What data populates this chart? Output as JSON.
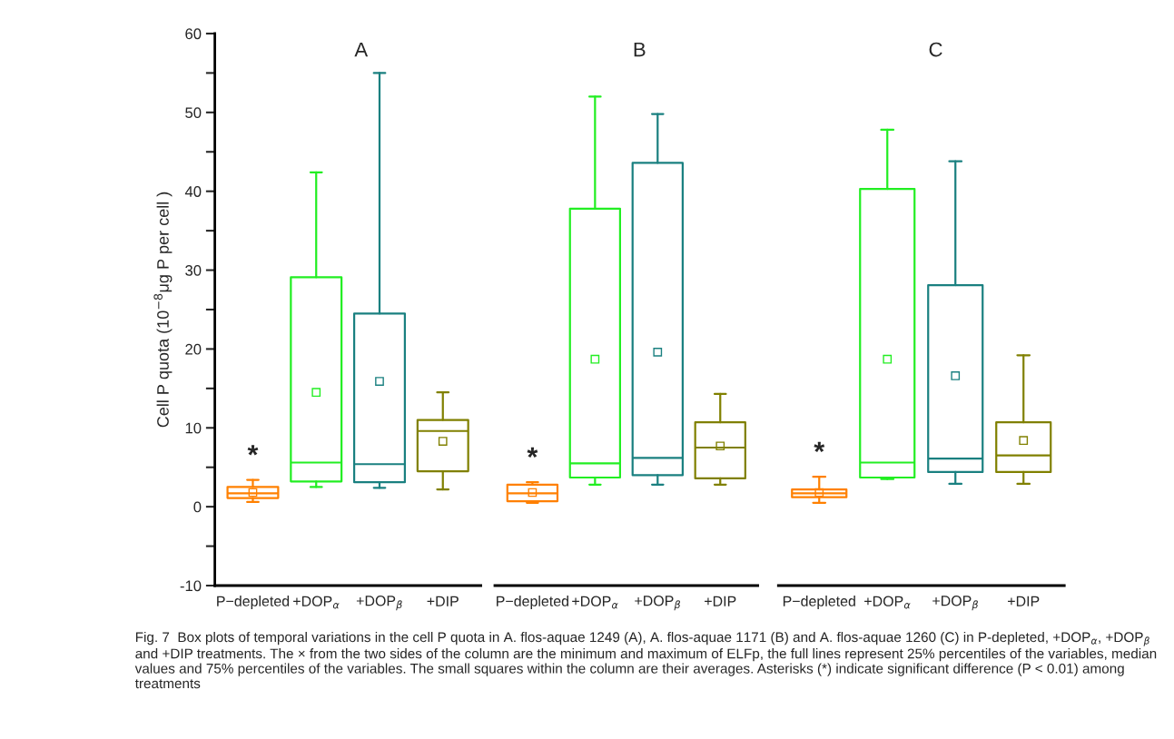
{
  "chart_data": [
    {
      "type": "box",
      "title": "A",
      "ylabel": "Cell P quota (10$^{−8}$μg P per cell )",
      "categories": [
        "P−depleted",
        "+DOP$_{α}$",
        "+DOP$_{β}$",
        "+DIP"
      ],
      "colors": [
        "#ff8000",
        "#22ee22",
        "#1a8080",
        "#808000"
      ],
      "boxes": [
        {
          "low": 0.6,
          "q1": 1.1,
          "median": 1.7,
          "q3": 2.5,
          "high": 3.4,
          "mean": 1.8
        },
        {
          "low": 2.5,
          "q1": 3.2,
          "median": 5.6,
          "q3": 29.1,
          "high": 42.4,
          "mean": 14.5
        },
        {
          "low": 2.4,
          "q1": 3.1,
          "median": 5.4,
          "q3": 24.5,
          "high": 55,
          "mean": 15.9
        },
        {
          "low": 2.2,
          "q1": 4.5,
          "median": 9.6,
          "q3": 11.0,
          "high": 14.5,
          "mean": 8.3
        }
      ],
      "ylim": [
        -10,
        60
      ],
      "yticks": [
        -10,
        {
          "value": -5,
          "label": null
        },
        0,
        {
          "value": 5,
          "label": null
        },
        10,
        {
          "value": 15,
          "label": null
        },
        20,
        {
          "value": 25,
          "label": null
        },
        30,
        {
          "value": 35,
          "label": null
        },
        40,
        {
          "value": 45,
          "label": null
        },
        50,
        {
          "value": 55,
          "label": null
        },
        60
      ],
      "annotations": [
        "*",
        "Fig. 7  Box plots of temporal variations in the cell P quota in A. flos-aquae 1249 (A), A. flos-aquae 1171 (B) and A. flos-aquae 1260 (C) in P-depleted, +DOP$_{α}$, +DOP$_{β}$ and +DIP treatments. The × from the two sides of the column are the minimum and maximum of ELFp, the full lines represent 25% percentiles of the variables, median values and 75% percentiles of the variables. The small squares within the column are their averages. Asterisks (*) indicate significant difference (P < 0.01) among treatments"
      ]
    },
    {
      "type": "box",
      "title": "B",
      "categories": [
        "P−depleted",
        "+DOP$_{α}$",
        "+DOP$_{β}$",
        "+DIP"
      ],
      "colors": [
        "#ff8000",
        "#22ee22",
        "#1a8080",
        "#808000"
      ],
      "boxes": [
        {
          "low": 0.5,
          "q1": 0.7,
          "median": 1.7,
          "q3": 2.8,
          "high": 3.1,
          "mean": 1.8
        },
        {
          "low": 2.8,
          "q1": 3.7,
          "median": 5.5,
          "q3": 37.8,
          "high": 52,
          "mean": 18.7
        },
        {
          "low": 2.8,
          "q1": 4.0,
          "median": 6.2,
          "q3": 43.6,
          "high": 49.8,
          "mean": 19.6
        },
        {
          "low": 2.8,
          "q1": 3.6,
          "median": 7.5,
          "q3": 10.7,
          "high": 14.3,
          "mean": 7.7
        }
      ],
      "ylim": [
        -10,
        60
      ],
      "tick_labels": "x",
      "annotations": [
        "*"
      ]
    },
    {
      "type": "box",
      "title": "C",
      "categories": [
        "P−depleted",
        "+DOP$_{α}$",
        "+DOP$_{β}$",
        "+DIP"
      ],
      "colors": [
        "#ff8000",
        "#22ee22",
        "#1a8080",
        "#808000"
      ],
      "boxes": [
        {
          "low": 0.5,
          "q1": 1.2,
          "median": 1.7,
          "q3": 2.2,
          "high": 3.8,
          "mean": 1.8
        },
        {
          "low": 3.5,
          "q1": 3.7,
          "median": 5.6,
          "q3": 40.3,
          "high": 47.8,
          "mean": 18.7
        },
        {
          "low": 2.9,
          "q1": 4.4,
          "median": 6.1,
          "q3": 28.1,
          "high": 43.8,
          "mean": 16.6
        },
        {
          "low": 2.9,
          "q1": 4.4,
          "median": 6.5,
          "q3": 10.7,
          "high": 19.2,
          "mean": 8.4
        }
      ],
      "ylim": [
        -10,
        60
      ],
      "tick_labels": "x",
      "annotations": [
        "*"
      ]
    }
  ]
}
